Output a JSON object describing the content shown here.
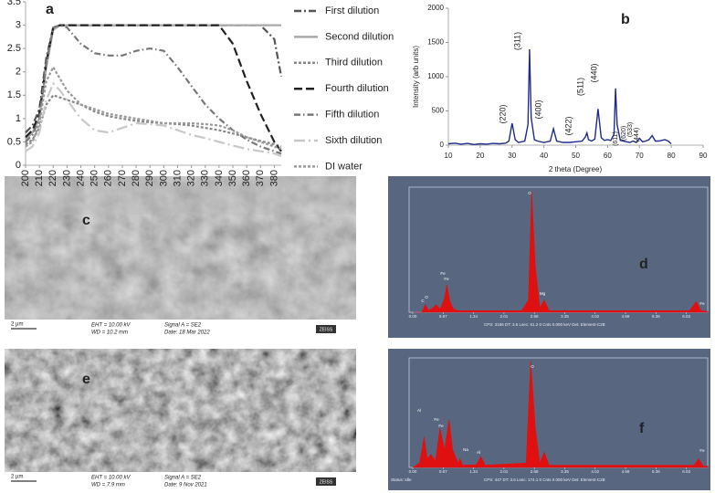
{
  "chart_data": [
    {
      "type": "line",
      "panel_label": "a",
      "x": [
        200,
        205,
        210,
        215,
        220,
        225,
        230,
        240,
        250,
        260,
        270,
        280,
        290,
        300,
        310,
        320,
        330,
        340,
        350,
        360,
        370,
        380,
        385
      ],
      "xlim": [
        200,
        385
      ],
      "xticks": [
        200,
        210,
        220,
        230,
        240,
        250,
        260,
        270,
        280,
        290,
        300,
        310,
        320,
        330,
        340,
        350,
        360,
        370,
        380
      ],
      "ylim": [
        0,
        3.5
      ],
      "yticks": [
        0,
        0.5,
        1,
        1.5,
        2,
        2.5,
        3,
        3.5
      ],
      "series": [
        {
          "name": "First dilution",
          "color": "#555555",
          "style": "dashed",
          "values": [
            0.7,
            0.85,
            1.2,
            2.3,
            2.95,
            3,
            3,
            3,
            3,
            3,
            3,
            3,
            3,
            3,
            3,
            3,
            3,
            3,
            3,
            3,
            3,
            2.7,
            1.9
          ]
        },
        {
          "name": "Second dilution",
          "color": "#aaaaaa",
          "style": "solid",
          "values": [
            0.55,
            0.7,
            1.0,
            2.1,
            2.9,
            3,
            3,
            3,
            3,
            3,
            3,
            3,
            3,
            3,
            3,
            3,
            3,
            3,
            3,
            3,
            3,
            3,
            3
          ]
        },
        {
          "name": "Third dilution",
          "color": "#888888",
          "style": "short-dash",
          "values": [
            0.45,
            0.55,
            0.8,
            1.3,
            1.5,
            1.45,
            1.4,
            1.3,
            1.15,
            1.05,
            1.0,
            0.95,
            0.92,
            0.9,
            0.88,
            0.85,
            0.8,
            0.75,
            0.68,
            0.6,
            0.52,
            0.45,
            0.4
          ]
        },
        {
          "name": "Fourth dilution",
          "color": "#222222",
          "style": "long-dash",
          "values": [
            0.6,
            0.75,
            1.1,
            2.2,
            2.95,
            3,
            3,
            3,
            3,
            3,
            3,
            3,
            3,
            3,
            3,
            3,
            3,
            3,
            2.6,
            1.8,
            1.1,
            0.5,
            0.3
          ]
        },
        {
          "name": "Fifth dilution",
          "color": "#777777",
          "style": "dash-dot",
          "values": [
            0.5,
            0.65,
            1.0,
            2.2,
            2.95,
            3,
            2.95,
            2.6,
            2.4,
            2.35,
            2.35,
            2.45,
            2.5,
            2.45,
            2.1,
            1.7,
            1.3,
            1.0,
            0.75,
            0.55,
            0.4,
            0.3,
            0.25
          ]
        },
        {
          "name": "Sixth dilution",
          "color": "#c8c8c8",
          "style": "long-dash-dot",
          "values": [
            0.3,
            0.4,
            0.7,
            1.4,
            1.75,
            1.6,
            1.4,
            1.0,
            0.75,
            0.7,
            0.8,
            0.9,
            0.88,
            0.85,
            0.75,
            0.65,
            0.58,
            0.5,
            0.42,
            0.35,
            0.3,
            0.25,
            0.2
          ]
        },
        {
          "name": "DI water",
          "color": "#999999",
          "style": "short-dash",
          "values": [
            0.4,
            0.5,
            0.9,
            1.8,
            2.1,
            1.85,
            1.6,
            1.3,
            1.2,
            1.1,
            1.05,
            1.0,
            0.95,
            0.9,
            0.9,
            0.9,
            0.88,
            0.85,
            0.75,
            0.6,
            0.5,
            0.4,
            0.35
          ]
        }
      ]
    },
    {
      "type": "line",
      "panel_label": "b",
      "y_label": "Intensity (arb units)",
      "x_label": "2 theta (Degree)",
      "color": "#1f2a8a",
      "x": [
        10,
        12,
        14,
        16,
        18,
        20,
        22,
        24,
        26,
        28,
        29,
        30,
        31,
        32,
        34,
        35,
        35.5,
        36,
        37,
        38,
        40,
        42,
        43,
        44,
        46,
        48,
        50,
        52,
        53,
        53.5,
        54,
        55,
        56,
        57,
        58,
        59,
        60,
        61,
        62,
        62.5,
        63,
        64,
        66,
        67,
        68,
        69,
        70,
        71,
        72,
        73,
        74,
        75,
        76,
        77,
        78,
        79,
        80
      ],
      "values": [
        20,
        30,
        15,
        25,
        10,
        20,
        15,
        25,
        20,
        30,
        60,
        320,
        80,
        40,
        60,
        300,
        1400,
        400,
        80,
        60,
        40,
        60,
        240,
        60,
        40,
        40,
        50,
        60,
        120,
        180,
        80,
        60,
        90,
        530,
        110,
        70,
        80,
        70,
        160,
        830,
        300,
        70,
        50,
        40,
        60,
        40,
        100,
        50,
        60,
        80,
        140,
        60,
        60,
        70,
        80,
        60,
        20
      ],
      "xlim": [
        10,
        90
      ],
      "xticks": [
        10,
        20,
        30,
        40,
        50,
        60,
        70,
        80,
        90
      ],
      "ylim": [
        0,
        2000
      ],
      "yticks": [
        0,
        500,
        1000,
        1500,
        2000
      ],
      "annotations": [
        "(220)",
        "(311)",
        "(400)",
        "(422)",
        "(511)",
        "(440)",
        "(611)",
        "(620)",
        "(533)",
        "(444)"
      ]
    },
    {
      "type": "spectrum",
      "panel_label": "d",
      "color": "#e01010",
      "x": [
        0,
        0.2,
        0.28,
        0.35,
        0.45,
        0.52,
        0.6,
        0.7,
        0.75,
        0.82,
        0.9,
        1.0,
        2.4,
        2.55,
        2.62,
        2.7,
        2.8,
        2.9,
        3.0,
        6.1,
        6.25,
        6.35,
        6.5
      ],
      "values": [
        0,
        0,
        500,
        100,
        300,
        500,
        200,
        900,
        1800,
        700,
        200,
        100,
        100,
        800,
        7900,
        3000,
        300,
        800,
        100,
        100,
        700,
        100,
        50
      ],
      "xlim": [
        0,
        6.5
      ],
      "ylim": [
        0,
        8200
      ],
      "xticks": [
        {
          "value": 0,
          "label": "0.00"
        },
        {
          "value": 0.67,
          "label": "0.67"
        },
        {
          "value": 1.34,
          "label": "1.34"
        },
        {
          "value": 2.01,
          "label": "2.01"
        },
        {
          "value": 2.68,
          "label": "2.68"
        },
        {
          "value": 3.35,
          "label": "3.35"
        },
        {
          "value": 4.02,
          "label": "4.02"
        },
        {
          "value": 4.69,
          "label": "4.69"
        },
        {
          "value": 5.36,
          "label": "5.36"
        },
        {
          "value": 6.03,
          "label": "6.03"
        }
      ],
      "peak_labels": [
        "C",
        "O",
        "Fe",
        "Fe",
        "O",
        "Mg",
        "Fe"
      ],
      "status": "CPS: 3186    DT: 3.6    Lsec: 61.2    0 Cnts    0.000 keV    Det: Element-C2B"
    },
    {
      "type": "spectrum",
      "panel_label": "f",
      "color": "#e01010",
      "x": [
        0,
        0.15,
        0.25,
        0.32,
        0.4,
        0.5,
        0.6,
        0.7,
        0.8,
        0.88,
        1.0,
        1.04,
        1.1,
        1.4,
        1.5,
        1.6,
        2.5,
        2.6,
        2.7,
        2.8,
        2.9,
        3.0,
        6.2,
        6.3,
        6.4,
        6.5
      ],
      "values": [
        0,
        100,
        700,
        200,
        300,
        150,
        900,
        400,
        1100,
        400,
        100,
        200,
        50,
        60,
        250,
        50,
        100,
        2450,
        900,
        100,
        350,
        50,
        50,
        200,
        30,
        30
      ],
      "xlim": [
        0,
        6.5
      ],
      "ylim": [
        0,
        2520
      ],
      "xticks": [
        {
          "value": 0,
          "label": "0.00"
        },
        {
          "value": 0.67,
          "label": "0.67"
        },
        {
          "value": 1.34,
          "label": "1.34"
        },
        {
          "value": 2.01,
          "label": "2.01"
        },
        {
          "value": 2.68,
          "label": "2.68"
        },
        {
          "value": 3.35,
          "label": "3.35"
        },
        {
          "value": 4.02,
          "label": "4.02"
        },
        {
          "value": 4.69,
          "label": "4.69"
        },
        {
          "value": 5.36,
          "label": "5.36"
        },
        {
          "value": 6.03,
          "label": "6.03"
        }
      ],
      "peak_labels": [
        "Al",
        "Fe",
        "Fe",
        "Na",
        "Al",
        "O",
        "Fe"
      ],
      "status": "CPS: 447    DT: 3.6    Lsec: 174.1    0 Cnts    0.000 keV    Det: Element-C2B",
      "state": "Status: Idle"
    }
  ],
  "sem_images": [
    {
      "panel_label": "c",
      "scale": "2 µm",
      "eht": "EHT = 10.00 kV",
      "wd": "WD = 10.2 mm",
      "signal": "Signal A = SE2",
      "date": "Date: 18 Mar 2022",
      "brand": "ZEISS"
    },
    {
      "panel_label": "e",
      "scale": "2 µm",
      "eht": "EHT = 10.00 kV",
      "wd": "WD = 7.9 mm",
      "signal": "Signal A = SE2",
      "date": "Date: 9 Nov 2021",
      "brand": "ZEISS"
    }
  ]
}
